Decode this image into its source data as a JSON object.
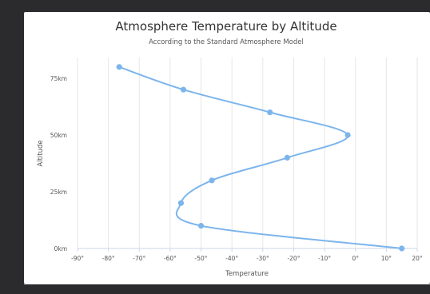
{
  "chart_data": {
    "type": "line",
    "title": "Atmosphere Temperature by Altitude",
    "subtitle": "According to the Standard Atmosphere Model",
    "xlabel": "Temperature",
    "ylabel": "Altitude",
    "x_unit_suffix": "°",
    "y_unit_suffix": "km",
    "xlim": [
      -90,
      20
    ],
    "ylim": [
      0,
      80
    ],
    "x_ticks": [
      -90,
      -80,
      -70,
      -60,
      -50,
      -40,
      -30,
      -20,
      -10,
      0,
      10,
      20
    ],
    "y_ticks": [
      0,
      25,
      50,
      75
    ],
    "grid": "vertical",
    "legend": "none",
    "inverted": true,
    "series": [
      {
        "points": [
          {
            "altitude": 0,
            "temperature": 15
          },
          {
            "altitude": 10,
            "temperature": -50
          },
          {
            "altitude": 20,
            "temperature": -56.5
          },
          {
            "altitude": 30,
            "temperature": -46.5
          },
          {
            "altitude": 40,
            "temperature": -22.1
          },
          {
            "altitude": 50,
            "temperature": -2.5
          },
          {
            "altitude": 60,
            "temperature": -27.7
          },
          {
            "altitude": 70,
            "temperature": -55.7
          },
          {
            "altitude": 80,
            "temperature": -76.5
          }
        ]
      }
    ],
    "colors": {
      "series": "#7cb5ec",
      "grid": "#e6e6e6",
      "axis": "#ccd6eb"
    }
  }
}
